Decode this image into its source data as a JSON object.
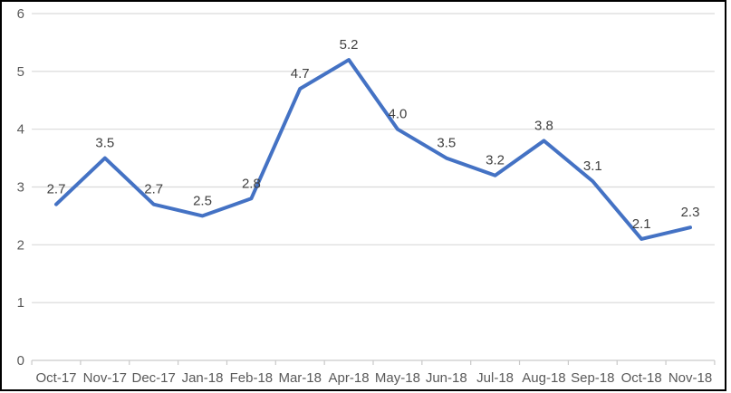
{
  "chart_data": {
    "type": "line",
    "title": "",
    "xlabel": "",
    "ylabel": "",
    "categories": [
      "Oct-17",
      "Nov-17",
      "Dec-17",
      "Jan-18",
      "Feb-18",
      "Mar-18",
      "Apr-18",
      "May-18",
      "Jun-18",
      "Jul-18",
      "Aug-18",
      "Sep-18",
      "Oct-18",
      "Nov-18"
    ],
    "values": [
      2.7,
      3.5,
      2.7,
      2.5,
      2.8,
      4.7,
      5.2,
      4.0,
      3.5,
      3.2,
      3.8,
      3.1,
      2.1,
      2.3
    ],
    "data_labels": [
      "2.7",
      "3.5",
      "2.7",
      "2.5",
      "2.8",
      "4.7",
      "5.2",
      "4.0",
      "3.5",
      "3.2",
      "3.8",
      "3.1",
      "2.1",
      "2.3"
    ],
    "ylim": [
      0,
      6
    ],
    "yticks": [
      "0",
      "1",
      "2",
      "3",
      "4",
      "5",
      "6"
    ],
    "grid": "horizontal",
    "legend": "none",
    "colors": {
      "line": "#4472C4",
      "gridline": "#D9D9D9",
      "axis_line": "#C9C9C9",
      "tick_label": "#595959",
      "data_label": "#404040",
      "border": "#000000",
      "background": "#FFFFFF"
    }
  }
}
